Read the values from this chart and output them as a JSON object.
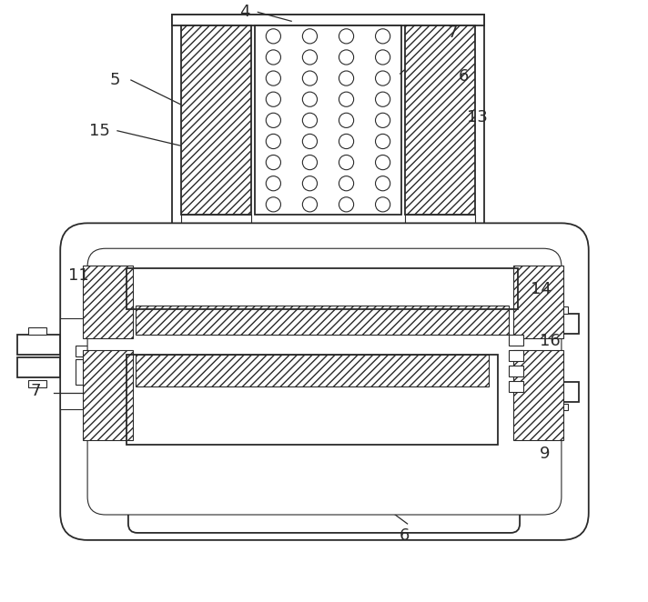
{
  "bg_color": "#ffffff",
  "line_color": "#2a2a2a",
  "fig_width": 7.12,
  "fig_height": 6.62,
  "dpi": 100
}
